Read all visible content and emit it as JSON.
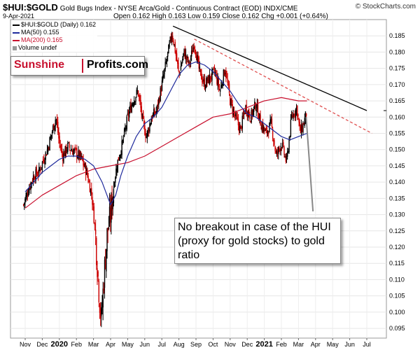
{
  "header": {
    "symbol": "$HUI:$GOLD",
    "description": "Gold Bugs Index - NYSE Arca/Gold - Continuous Contract (EOD) INDX/CME",
    "date": "9-Apr-2021",
    "ohlc_text": "Open 0.162  High 0.163  Low 0.159  Close 0.162  Chg +0.001 (+0.64%)",
    "brand": "© StockCharts.com"
  },
  "legend": {
    "main": "$HUI:$GOLD (Daily) 0.162",
    "ma50": "MA(50) 0.155",
    "ma200": "MA(200) 0.165",
    "volume": "Volume undef"
  },
  "logo": {
    "part1": "Sunshine",
    "part2": "Profits.com"
  },
  "note": "No breakout in case of the HUI (proxy for gold stocks) to gold ratio",
  "colors": {
    "up": "#000000",
    "down": "#cc0000",
    "ma50": "#1f2a9c",
    "ma200": "#c8102e",
    "trend_black": "#000000",
    "trend_red_dashed": "#e05050"
  },
  "chart_data": {
    "type": "candlestick",
    "title": "$HUI:$GOLD Gold Bugs Index - NYSE Arca/Gold - Continuous Contract (EOD) INDX/CME",
    "ylim": [
      0.092,
      0.19
    ],
    "y_ticks": [
      0.095,
      0.1,
      0.105,
      0.11,
      0.115,
      0.12,
      0.125,
      0.13,
      0.135,
      0.14,
      0.145,
      0.15,
      0.155,
      0.16,
      0.165,
      0.17,
      0.175,
      0.18,
      0.185
    ],
    "y_tick_labels": [
      "0.095",
      "0.100",
      "0.105",
      "0.110",
      "0.115",
      "0.120",
      "0.125",
      "0.130",
      "0.135",
      "0.140",
      "0.145",
      "0.150",
      "0.155",
      "0.160",
      "0.165",
      "0.170",
      "0.175",
      "0.180",
      "0.185"
    ],
    "x_ticks": [
      {
        "label": "Nov",
        "month": 0,
        "bold": false
      },
      {
        "label": "Dec",
        "month": 1,
        "bold": false
      },
      {
        "label": "2020",
        "month": 2,
        "bold": true
      },
      {
        "label": "Feb",
        "month": 3,
        "bold": false
      },
      {
        "label": "Mar",
        "month": 4,
        "bold": false
      },
      {
        "label": "Apr",
        "month": 5,
        "bold": false
      },
      {
        "label": "May",
        "month": 6,
        "bold": false
      },
      {
        "label": "Jun",
        "month": 7,
        "bold": false
      },
      {
        "label": "Jul",
        "month": 8,
        "bold": false
      },
      {
        "label": "Aug",
        "month": 9,
        "bold": false
      },
      {
        "label": "Sep",
        "month": 10,
        "bold": false
      },
      {
        "label": "Oct",
        "month": 11,
        "bold": false
      },
      {
        "label": "Nov",
        "month": 12,
        "bold": false
      },
      {
        "label": "Dec",
        "month": 13,
        "bold": false
      },
      {
        "label": "2021",
        "month": 14,
        "bold": true
      },
      {
        "label": "Feb",
        "month": 15,
        "bold": false
      },
      {
        "label": "Mar",
        "month": 16,
        "bold": false
      },
      {
        "label": "Apr",
        "month": 17,
        "bold": false
      },
      {
        "label": "May",
        "month": 18,
        "bold": false
      },
      {
        "label": "Jun",
        "month": 19,
        "bold": false
      },
      {
        "label": "Jul",
        "month": 20,
        "bold": false
      }
    ],
    "price_path": [
      [
        -0.1,
        0.133
      ],
      [
        0.2,
        0.138
      ],
      [
        0.5,
        0.142
      ],
      [
        0.8,
        0.143
      ],
      [
        1.0,
        0.146
      ],
      [
        1.3,
        0.15
      ],
      [
        1.6,
        0.156
      ],
      [
        1.8,
        0.16
      ],
      [
        2.0,
        0.152
      ],
      [
        2.2,
        0.148
      ],
      [
        2.5,
        0.151
      ],
      [
        2.7,
        0.15
      ],
      [
        3.0,
        0.149
      ],
      [
        3.3,
        0.147
      ],
      [
        3.6,
        0.143
      ],
      [
        3.9,
        0.136
      ],
      [
        4.1,
        0.125
      ],
      [
        4.3,
        0.108
      ],
      [
        4.45,
        0.097
      ],
      [
        4.6,
        0.11
      ],
      [
        4.8,
        0.124
      ],
      [
        5.0,
        0.13
      ],
      [
        5.2,
        0.14
      ],
      [
        5.4,
        0.146
      ],
      [
        5.7,
        0.152
      ],
      [
        6.0,
        0.16
      ],
      [
        6.3,
        0.165
      ],
      [
        6.6,
        0.168
      ],
      [
        6.9,
        0.158
      ],
      [
        7.1,
        0.154
      ],
      [
        7.4,
        0.16
      ],
      [
        7.7,
        0.162
      ],
      [
        8.0,
        0.17
      ],
      [
        8.3,
        0.178
      ],
      [
        8.6,
        0.186
      ],
      [
        8.8,
        0.18
      ],
      [
        9.0,
        0.173
      ],
      [
        9.3,
        0.18
      ],
      [
        9.6,
        0.176
      ],
      [
        9.9,
        0.183
      ],
      [
        10.2,
        0.174
      ],
      [
        10.5,
        0.17
      ],
      [
        10.8,
        0.172
      ],
      [
        11.1,
        0.174
      ],
      [
        11.4,
        0.168
      ],
      [
        11.7,
        0.175
      ],
      [
        12.0,
        0.165
      ],
      [
        12.3,
        0.16
      ],
      [
        12.6,
        0.156
      ],
      [
        12.9,
        0.163
      ],
      [
        13.2,
        0.16
      ],
      [
        13.5,
        0.164
      ],
      [
        13.8,
        0.158
      ],
      [
        14.1,
        0.155
      ],
      [
        14.4,
        0.158
      ],
      [
        14.7,
        0.148
      ],
      [
        15.0,
        0.152
      ],
      [
        15.3,
        0.146
      ],
      [
        15.6,
        0.16
      ],
      [
        15.9,
        0.163
      ],
      [
        16.1,
        0.155
      ],
      [
        16.3,
        0.158
      ],
      [
        16.5,
        0.162
      ]
    ],
    "ma50": [
      [
        0.0,
        0.137
      ],
      [
        0.5,
        0.14
      ],
      [
        1.0,
        0.143
      ],
      [
        1.5,
        0.145
      ],
      [
        2.0,
        0.147
      ],
      [
        2.5,
        0.148
      ],
      [
        3.0,
        0.148
      ],
      [
        3.5,
        0.147
      ],
      [
        4.0,
        0.145
      ],
      [
        4.5,
        0.14
      ],
      [
        5.0,
        0.133
      ],
      [
        5.3,
        0.136
      ],
      [
        5.6,
        0.142
      ],
      [
        6.0,
        0.148
      ],
      [
        6.5,
        0.154
      ],
      [
        7.0,
        0.158
      ],
      [
        7.5,
        0.16
      ],
      [
        8.0,
        0.163
      ],
      [
        8.5,
        0.168
      ],
      [
        9.0,
        0.173
      ],
      [
        9.5,
        0.176
      ],
      [
        10.0,
        0.177
      ],
      [
        10.5,
        0.176
      ],
      [
        11.0,
        0.174
      ],
      [
        11.5,
        0.171
      ],
      [
        12.0,
        0.168
      ],
      [
        12.5,
        0.164
      ],
      [
        13.0,
        0.161
      ],
      [
        13.5,
        0.16
      ],
      [
        14.0,
        0.158
      ],
      [
        14.5,
        0.156
      ],
      [
        15.0,
        0.154
      ],
      [
        15.5,
        0.153
      ],
      [
        16.0,
        0.154
      ],
      [
        16.5,
        0.155
      ]
    ],
    "ma200": [
      [
        0.0,
        0.132
      ],
      [
        1.0,
        0.136
      ],
      [
        2.0,
        0.139
      ],
      [
        3.0,
        0.142
      ],
      [
        4.0,
        0.144
      ],
      [
        5.0,
        0.145
      ],
      [
        6.0,
        0.146
      ],
      [
        7.0,
        0.148
      ],
      [
        8.0,
        0.151
      ],
      [
        9.0,
        0.154
      ],
      [
        10.0,
        0.157
      ],
      [
        11.0,
        0.16
      ],
      [
        12.0,
        0.161
      ],
      [
        13.0,
        0.163
      ],
      [
        14.0,
        0.165
      ],
      [
        15.0,
        0.166
      ],
      [
        16.0,
        0.165
      ],
      [
        16.5,
        0.165
      ]
    ],
    "trendlines": [
      {
        "name": "resistance",
        "style": "solid",
        "from": [
          8.65,
          0.188
        ],
        "to": [
          20.0,
          0.162
        ]
      },
      {
        "name": "resistance-dashed",
        "style": "dashed",
        "from": [
          9.9,
          0.184
        ],
        "to": [
          20.3,
          0.155
        ]
      }
    ],
    "note_pointer": {
      "from": [
        16.45,
        0.16
      ],
      "to": [
        16.85,
        0.131
      ]
    },
    "last_close": 0.162
  }
}
